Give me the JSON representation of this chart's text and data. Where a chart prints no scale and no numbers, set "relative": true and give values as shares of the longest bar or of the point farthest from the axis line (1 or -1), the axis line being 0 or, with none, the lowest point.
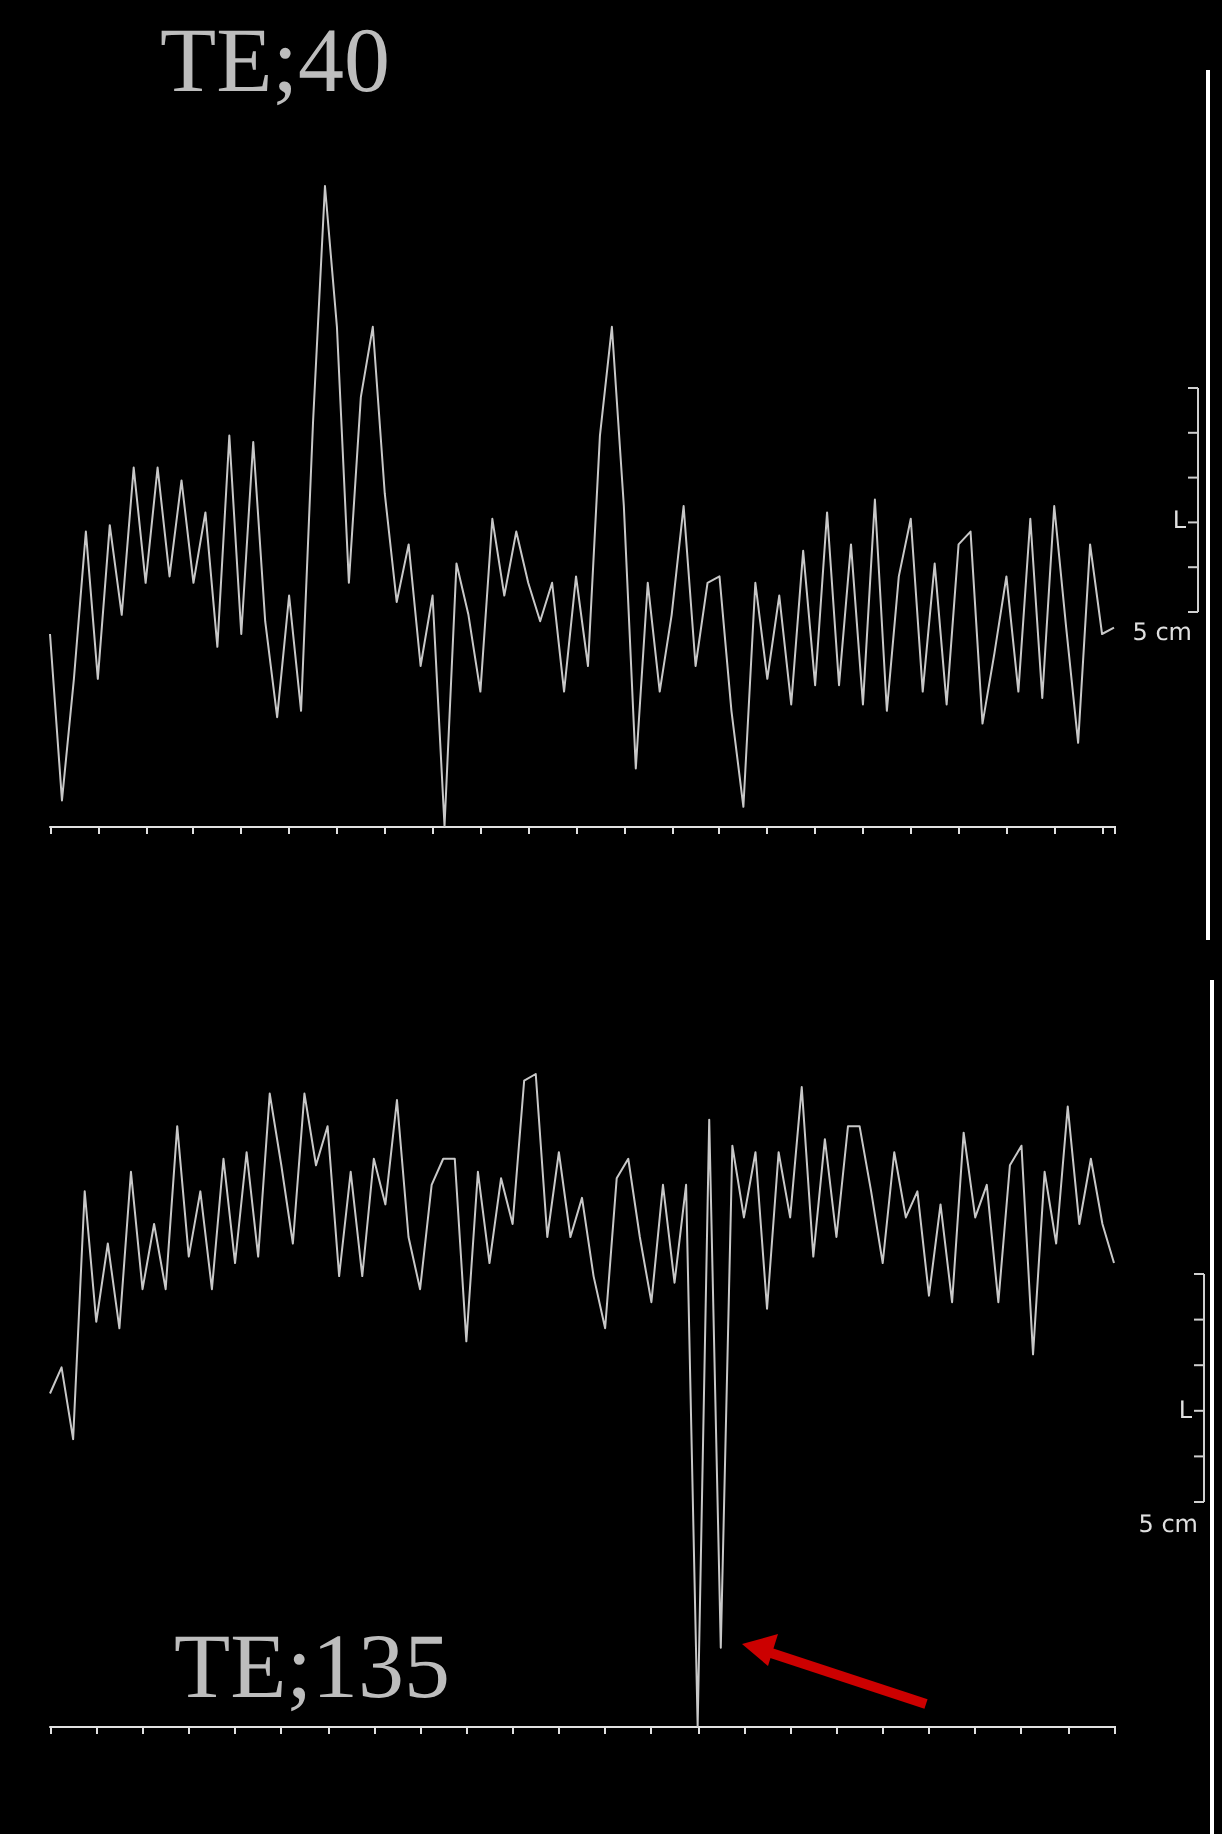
{
  "chart_data": [
    {
      "type": "line",
      "title": "TE;40",
      "annotations": [
        "L",
        "5 cm"
      ],
      "relative": true,
      "tick_labels": false,
      "color": "#c8c8c8",
      "categories": [
        null,
        null,
        null,
        null,
        null,
        null,
        null,
        null,
        null,
        null,
        null,
        null,
        null,
        null,
        null,
        null,
        null,
        null,
        null,
        null,
        null,
        null,
        null,
        null,
        null,
        null,
        null,
        null,
        null,
        null,
        null,
        null,
        null,
        null,
        null,
        null,
        null,
        null,
        null,
        null,
        null,
        null,
        null,
        null,
        null,
        null,
        null,
        null,
        null,
        null,
        null,
        null,
        null,
        null,
        null,
        null,
        null,
        null,
        null,
        null,
        null,
        null,
        null,
        null,
        null,
        null,
        null,
        null,
        null,
        null,
        null,
        null,
        null,
        null,
        null,
        null,
        null,
        null,
        null,
        null,
        null,
        null,
        null,
        null,
        null,
        null,
        null,
        null,
        null,
        null
      ],
      "values": [
        0.3,
        0.04,
        0.23,
        0.46,
        0.23,
        0.47,
        0.33,
        0.56,
        0.38,
        0.56,
        0.39,
        0.54,
        0.38,
        0.49,
        0.28,
        0.61,
        0.3,
        0.6,
        0.32,
        0.17,
        0.36,
        0.18,
        0.63,
        1,
        0.78,
        0.38,
        0.67,
        0.78,
        0.52,
        0.35,
        0.44,
        0.25,
        0.36,
        0,
        0.41,
        0.33,
        0.21,
        0.48,
        0.36,
        0.46,
        0.38,
        0.32,
        0.38,
        0.21,
        0.39,
        0.25,
        0.61,
        0.78,
        0.5,
        0.09,
        0.38,
        0.21,
        0.33,
        0.5,
        0.25,
        0.38,
        0.39,
        0.18,
        0.03,
        0.38,
        0.23,
        0.36,
        0.19,
        0.43,
        0.22,
        0.49,
        0.22,
        0.44,
        0.19,
        0.51,
        0.18,
        0.39,
        0.48,
        0.21,
        0.41,
        0.19,
        0.44,
        0.46,
        0.16,
        0.27,
        0.39,
        0.21,
        0.48,
        0.2,
        0.5,
        0.31,
        0.13,
        0.44,
        0.3,
        0.31
      ]
    },
    {
      "type": "line",
      "title": "TE;135",
      "annotations": [
        "L",
        "5 cm"
      ],
      "relative": true,
      "tick_labels": false,
      "color": "#c8c8c8",
      "categories": [
        null,
        null,
        null,
        null,
        null,
        null,
        null,
        null,
        null,
        null,
        null,
        null,
        null,
        null,
        null,
        null,
        null,
        null,
        null,
        null,
        null,
        null,
        null,
        null,
        null,
        null,
        null,
        null,
        null,
        null,
        null,
        null,
        null,
        null,
        null,
        null,
        null,
        null,
        null,
        null,
        null,
        null,
        null,
        null,
        null,
        null,
        null,
        null,
        null,
        null,
        null,
        null,
        null,
        null,
        null,
        null,
        null,
        null,
        null,
        null,
        null,
        null,
        null,
        null,
        null,
        null,
        null,
        null,
        null,
        null,
        null,
        null,
        null,
        null,
        null,
        null,
        null,
        null,
        null,
        null,
        null,
        null,
        null,
        null,
        null,
        null,
        null,
        null,
        null,
        null,
        null,
        null,
        null
      ],
      "values": [
        0.51,
        0.55,
        0.44,
        0.82,
        0.62,
        0.74,
        0.61,
        0.85,
        0.67,
        0.77,
        0.67,
        0.92,
        0.72,
        0.82,
        0.67,
        0.87,
        0.71,
        0.88,
        0.72,
        0.97,
        0.86,
        0.74,
        0.97,
        0.86,
        0.92,
        0.69,
        0.85,
        0.69,
        0.87,
        0.8,
        0.96,
        0.75,
        0.67,
        0.83,
        0.87,
        0.87,
        0.59,
        0.85,
        0.71,
        0.84,
        0.77,
        0.99,
        1,
        0.75,
        0.88,
        0.75,
        0.81,
        0.69,
        0.61,
        0.84,
        0.87,
        0.75,
        0.65,
        0.83,
        0.68,
        0.83,
        0,
        0.93,
        0.12,
        0.89,
        0.78,
        0.88,
        0.64,
        0.88,
        0.78,
        0.98,
        0.72,
        0.9,
        0.75,
        0.92,
        0.92,
        0.82,
        0.71,
        0.88,
        0.78,
        0.82,
        0.66,
        0.8,
        0.65,
        0.91,
        0.78,
        0.83,
        0.65,
        0.86,
        0.89,
        0.57,
        0.85,
        0.74,
        0.95,
        0.77,
        0.87,
        0.77,
        0.71
      ]
    }
  ]
}
